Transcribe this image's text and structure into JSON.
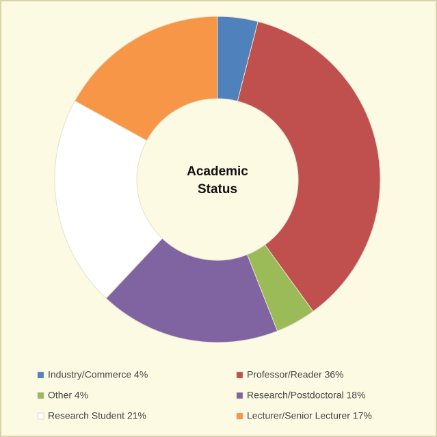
{
  "chart_data": {
    "type": "donut",
    "title": "Academic Status",
    "categories": [
      "Industry/Commerce 4%",
      "Professor/Reader 36%",
      "Other 4%",
      "Research/Postdoctoral 18%",
      "Research Student 21%",
      "Lecturer/Senior Lecturer 17%"
    ],
    "values": [
      4,
      36,
      4,
      18,
      21,
      17
    ],
    "colors": [
      "#4f81bd",
      "#c0504d",
      "#9bbb59",
      "#8064a2",
      "#ffffff",
      "#f79646"
    ],
    "legend": "bottom"
  }
}
